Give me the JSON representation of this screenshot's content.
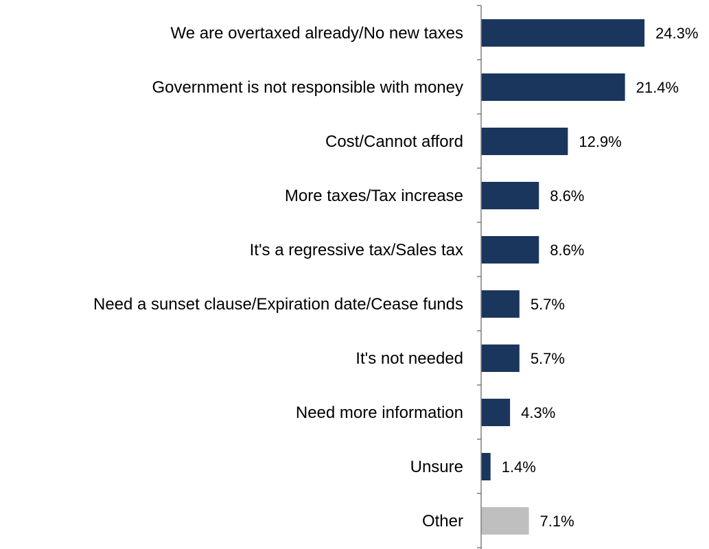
{
  "chart_data": {
    "type": "bar",
    "orientation": "horizontal",
    "categories": [
      "We are overtaxed already/No new taxes",
      "Government is not responsible with money",
      "Cost/Cannot afford",
      "More taxes/Tax increase",
      "It's a regressive tax/Sales tax",
      "Need a sunset clause/Expiration date/Cease funds",
      "It's not needed",
      "Need more information",
      "Unsure",
      "Other"
    ],
    "values": [
      24.3,
      21.4,
      12.9,
      8.6,
      8.6,
      5.7,
      5.7,
      4.3,
      1.4,
      7.1
    ],
    "data_labels": [
      "24.3%",
      "21.4%",
      "12.9%",
      "8.6%",
      "8.6%",
      "5.7%",
      "5.7%",
      "4.3%",
      "1.4%",
      "7.1%"
    ],
    "bar_colors": [
      "#1b365d",
      "#1b365d",
      "#1b365d",
      "#1b365d",
      "#1b365d",
      "#1b365d",
      "#1b365d",
      "#1b365d",
      "#1b365d",
      "#bfbfbf"
    ],
    "xlim": [
      0,
      24.3
    ],
    "grid": false,
    "legend": "none"
  }
}
